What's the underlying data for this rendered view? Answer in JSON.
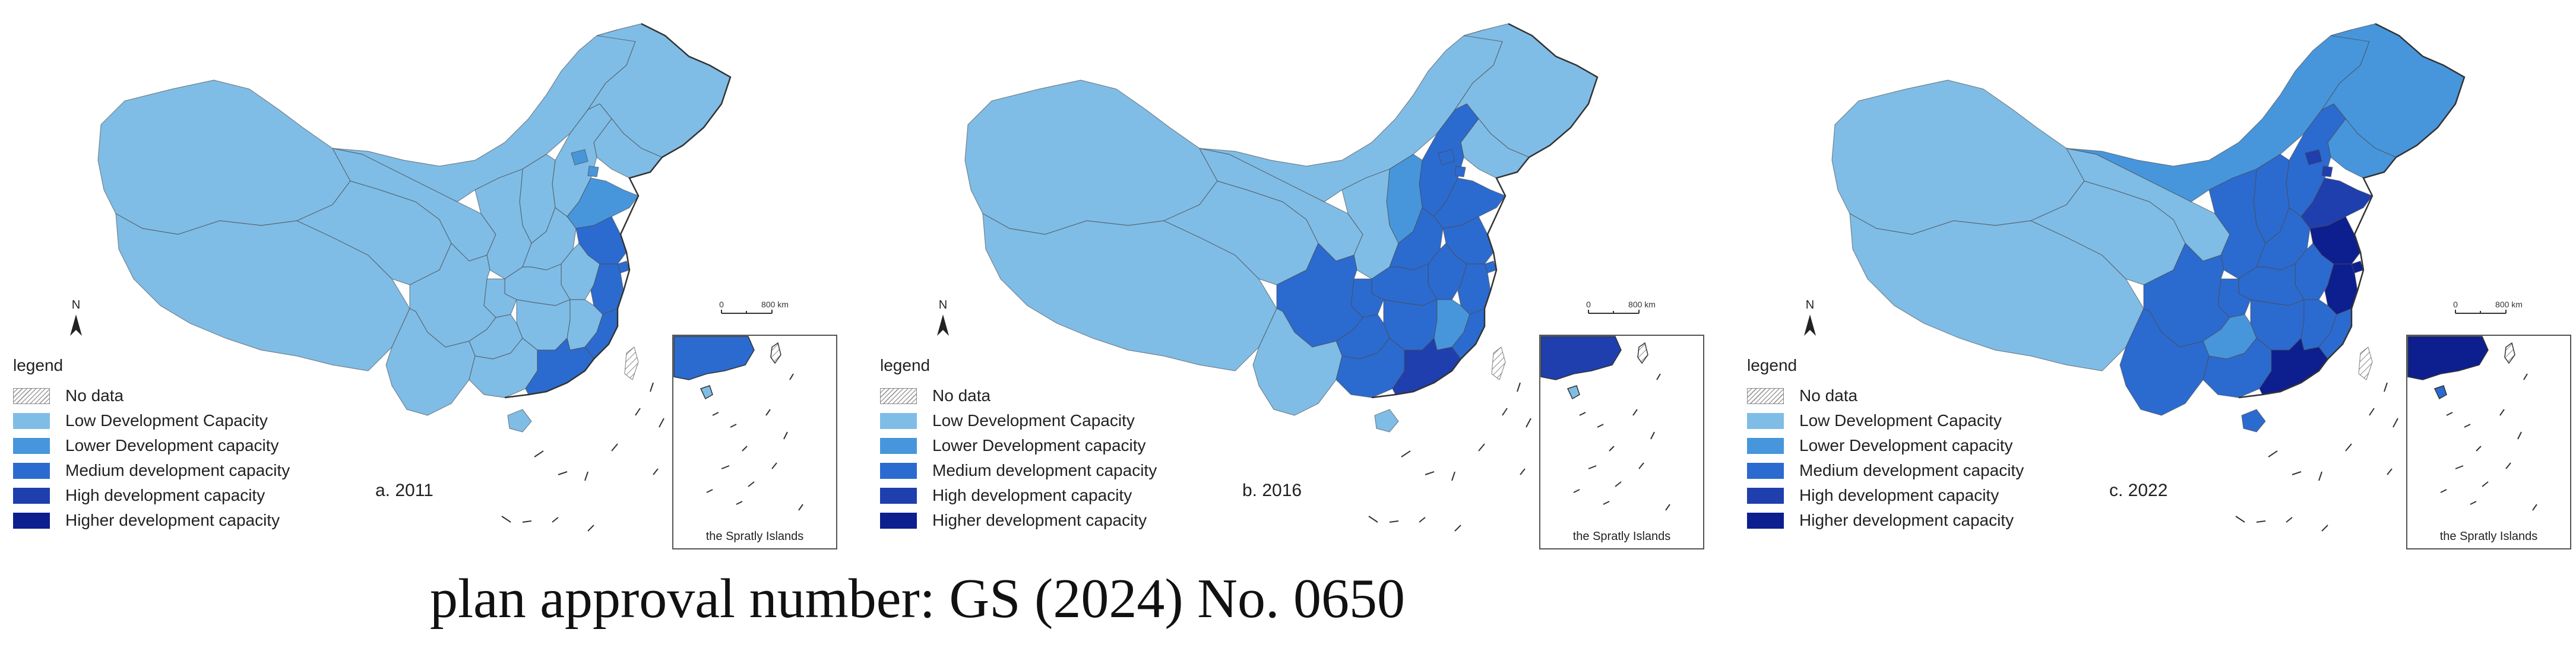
{
  "colors": {
    "no_data": "hatched",
    "low": "#7fbde7",
    "lower": "#4796dc",
    "medium": "#2b6bd0",
    "high": "#1f3fae",
    "higher": "#0d1f8e",
    "border": "#4a4a4a"
  },
  "legend": {
    "title": "legend",
    "items": [
      {
        "label": "No data",
        "color_key": "no_data"
      },
      {
        "label": "Low Development Capacity",
        "color_key": "low"
      },
      {
        "label": "Lower Development capacity",
        "color_key": "lower"
      },
      {
        "label": "Medium development capacity",
        "color_key": "medium"
      },
      {
        "label": "High development capacity",
        "color_key": "high"
      },
      {
        "label": "Higher development capacity",
        "color_key": "higher"
      }
    ]
  },
  "panels": [
    {
      "caption": "a.  2011",
      "north": "N",
      "scale_zero": "0",
      "scale_max": "800 km",
      "inset_label": "the Spratly Islands",
      "regions": {
        "ne": "low",
        "nmg": "low",
        "xj": "low",
        "xz": "low",
        "qh": "low",
        "gs": "low",
        "sc": "low",
        "yn": "low",
        "gx": "low",
        "gz": "low",
        "cq": "low",
        "sn": "low",
        "hn_c": "low",
        "hb": "low",
        "hen": "low",
        "sx": "low",
        "hbj": "low",
        "bj": "lower",
        "tj": "lower",
        "sd": "lower",
        "js": "medium",
        "sh": "medium",
        "zj": "medium",
        "ah": "low",
        "jx": "low",
        "fj": "medium",
        "gd": "medium",
        "hainan": "low",
        "tw": "hatched",
        "ln": "low"
      },
      "inset_fill": "medium"
    },
    {
      "caption": "b.  2016",
      "north": "N",
      "scale_zero": "0",
      "scale_max": "800 km",
      "inset_label": "the Spratly Islands",
      "regions": {
        "ne": "low",
        "nmg": "low",
        "xj": "low",
        "xz": "low",
        "qh": "low",
        "gs": "low",
        "sc": "medium",
        "yn": "low",
        "gx": "medium",
        "gz": "medium",
        "cq": "medium",
        "sn": "low",
        "hn_c": "medium",
        "hb": "medium",
        "hen": "medium",
        "sx": "lower",
        "hbj": "medium",
        "bj": "medium",
        "tj": "medium",
        "sd": "medium",
        "js": "medium",
        "sh": "medium",
        "zj": "medium",
        "ah": "medium",
        "jx": "lower",
        "fj": "medium",
        "gd": "high",
        "hainan": "low",
        "tw": "hatched",
        "ln": "low"
      },
      "inset_fill": "high"
    },
    {
      "caption": "c.  2022",
      "north": "N",
      "scale_zero": "0",
      "scale_max": "800 km",
      "inset_label": "the Spratly Islands",
      "regions": {
        "ne": "lower",
        "nmg": "lower",
        "xj": "low",
        "xz": "low",
        "qh": "low",
        "gs": "low",
        "sc": "medium",
        "yn": "medium",
        "gx": "medium",
        "gz": "lower",
        "cq": "medium",
        "sn": "medium",
        "hn_c": "medium",
        "hb": "medium",
        "hen": "medium",
        "sx": "medium",
        "hbj": "medium",
        "bj": "high",
        "tj": "high",
        "sd": "high",
        "js": "higher",
        "sh": "higher",
        "zj": "higher",
        "ah": "medium",
        "jx": "medium",
        "fj": "medium",
        "gd": "higher",
        "hainan": "medium",
        "tw": "hatched",
        "ln": "lower"
      },
      "inset_fill": "higher"
    }
  ],
  "footer": "plan approval number: GS (2024) No. 0650"
}
